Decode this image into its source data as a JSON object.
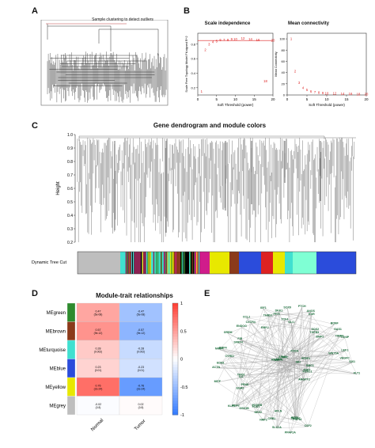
{
  "panels": {
    "A": {
      "letter": "A",
      "title": "Sample clustering to detect outliers"
    },
    "B": {
      "letter": "B",
      "scale": {
        "title": "Scale independence",
        "xlabel": "Soft Threshold (power)",
        "ylabel": "Scale Free Topology Model Fit,signed R^2",
        "xticks": [
          "0",
          "5",
          "10",
          "15",
          "20"
        ],
        "yticks": [
          "0.2",
          "0.4",
          "0.6",
          "0.8"
        ]
      },
      "mean": {
        "title": "Mean connectivity",
        "xlabel": "Soft Threshold (power)",
        "ylabel": "Mean Connectivity",
        "xticks": [
          "0",
          "5",
          "10",
          "15",
          "20"
        ],
        "yticks": [
          "0",
          "20",
          "40",
          "60",
          "80",
          "100"
        ]
      }
    },
    "C": {
      "letter": "C",
      "title": "Gene dendrogram and module colors",
      "ylabel": "Height",
      "yticks": [
        "0.2",
        "0.3",
        "0.4",
        "0.5",
        "0.6",
        "0.7",
        "0.8",
        "0.9",
        "1.0"
      ],
      "rowlabel": "Dynamic Tree Cut"
    },
    "D": {
      "letter": "D",
      "title": "Module-trait relationships",
      "modules": [
        "MEgreen",
        "MEbrown",
        "MEturquoise",
        "MEblue",
        "MEyellow",
        "MEgrey"
      ],
      "module_colors": [
        "#2e8b2e",
        "#8b3a1a",
        "#40e0d0",
        "#2b4cdb",
        "#e8e800",
        "#bebebe"
      ],
      "traits": [
        "Normal",
        "Tumor"
      ],
      "cells": [
        [
          "0.47\n(5e-08)",
          "-0.47\n(5e-08)"
        ],
        [
          "0.57\n(9e-12)",
          "-0.57\n(9e-12)"
        ],
        [
          "0.28\n(0.002)",
          "-0.28\n(0.002)"
        ],
        [
          "0.23\n(0.01)",
          "-0.23\n(0.01)"
        ],
        [
          "0.76\n(2e-24)",
          "-0.76\n(2e-24)"
        ],
        [
          "-0.02\n(0.8)",
          "0.02\n(0.8)"
        ]
      ],
      "values": [
        [
          0.47,
          -0.47
        ],
        [
          0.57,
          -0.57
        ],
        [
          0.28,
          -0.28
        ],
        [
          0.23,
          -0.23
        ],
        [
          0.76,
          -0.76
        ],
        [
          -0.02,
          0.02
        ]
      ],
      "scale": [
        "1",
        "0.5",
        "0",
        "-0.5",
        "-1"
      ]
    },
    "E": {
      "letter": "E",
      "genes": [
        "IHH",
        "SMC1",
        "TNPT",
        "WNT",
        "FOXC1",
        "FZDG",
        "NPC",
        "NLN",
        "SFRP1",
        "ANGPT1",
        "ANGPT2",
        "ARHG",
        "CSF2",
        "FGF14",
        "SHOX2",
        "ACSL",
        "PPAP2A",
        "SLC2A",
        "APLN",
        "CRB1",
        "NRP2",
        "NRX2",
        "POST",
        "PDGFB",
        "GSK3B",
        "FGF2",
        "KLF5",
        "PENK",
        "EGR2",
        "IL6",
        "MITF",
        "TFPI2",
        "ACTN",
        "EDN1",
        "CYR61",
        "NR4A",
        "BMP4",
        "GREM",
        "SFRP4",
        "FIR",
        "ENDOG",
        "CXCR4",
        "CCL2",
        "RBPJ",
        "IGF1",
        "THBS1",
        "JAG1",
        "DKK1",
        "SOX9",
        "TCF4",
        "GLI1",
        "PTCH",
        "KDR",
        "ANOS",
        "SOX2",
        "TGFB3",
        "BDNF",
        "BMP2",
        "GAS1",
        "TIMP3",
        "TXNIP",
        "WNT5A",
        "LEF1",
        "SIX1",
        "VEGFC",
        "FLT1"
      ]
    }
  },
  "chart_data": [
    {
      "type": "scatter",
      "title": "Scale independence",
      "xlabel": "Soft Threshold (power)",
      "ylabel": "Scale Free Topology Model Fit,signed R^2",
      "x": [
        1,
        2,
        3,
        4,
        5,
        6,
        7,
        8,
        9,
        10,
        12,
        14,
        16,
        18,
        20
      ],
      "y": [
        0.15,
        0.72,
        0.8,
        0.83,
        0.84,
        0.86,
        0.86,
        0.86,
        0.87,
        0.87,
        0.88,
        0.87,
        0.86,
        0.29,
        0.85
      ],
      "xlim": [
        0,
        20
      ],
      "ylim": [
        0.1,
        0.95
      ]
    },
    {
      "type": "scatter",
      "title": "Mean connectivity",
      "xlabel": "Soft Threshold (power)",
      "ylabel": "Mean Connectivity",
      "x": [
        1,
        2,
        3,
        4,
        5,
        6,
        7,
        8,
        9,
        10,
        12,
        14,
        16,
        18,
        20
      ],
      "y": [
        100,
        42,
        22,
        13,
        9,
        6,
        5,
        4,
        3.5,
        3,
        2.5,
        2,
        1.8,
        1.5,
        1.2
      ],
      "xlim": [
        0,
        20
      ],
      "ylim": [
        0,
        110
      ]
    },
    {
      "type": "heatmap",
      "title": "Module-trait relationships",
      "rows": [
        "MEgreen",
        "MEbrown",
        "MEturquoise",
        "MEblue",
        "MEyellow",
        "MEgrey"
      ],
      "cols": [
        "Normal",
        "Tumor"
      ],
      "values": [
        [
          0.47,
          -0.47
        ],
        [
          0.57,
          -0.57
        ],
        [
          0.28,
          -0.28
        ],
        [
          0.23,
          -0.23
        ],
        [
          0.76,
          -0.76
        ],
        [
          -0.02,
          0.02
        ]
      ]
    }
  ]
}
